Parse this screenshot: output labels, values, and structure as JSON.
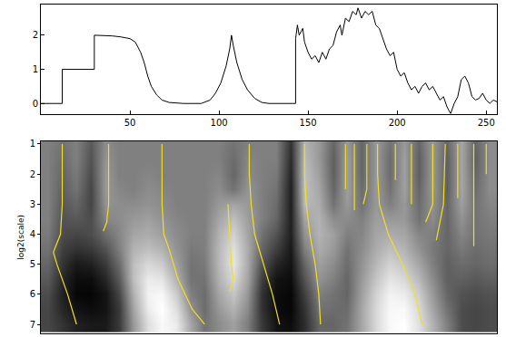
{
  "chart_data": [
    {
      "type": "line",
      "x": [
        0,
        12,
        12,
        30,
        30,
        35,
        40,
        45,
        50,
        53,
        56,
        58,
        60,
        62,
        65,
        68,
        72,
        80,
        90,
        95,
        98,
        101,
        104,
        106,
        107,
        108,
        110,
        113,
        116,
        120,
        124,
        128,
        143,
        143,
        144,
        145,
        147,
        148,
        150,
        152,
        154,
        156,
        158,
        160,
        162,
        164,
        166,
        168,
        169,
        171,
        173,
        175,
        177,
        178,
        180,
        182,
        184,
        186,
        188,
        190,
        192,
        194,
        196,
        198,
        200,
        202,
        204,
        206,
        208,
        210,
        212,
        214,
        216,
        218,
        220,
        222,
        224,
        226,
        228,
        230,
        232,
        234,
        236,
        238,
        240,
        242,
        244,
        246,
        248,
        250,
        252,
        254,
        256
      ],
      "values": [
        0,
        0,
        1,
        1,
        2,
        2,
        1.98,
        1.95,
        1.9,
        1.8,
        1.5,
        1.2,
        0.8,
        0.5,
        0.25,
        0.1,
        0.03,
        0,
        0,
        0.1,
        0.3,
        0.6,
        1.1,
        1.6,
        2.0,
        1.7,
        1.2,
        0.7,
        0.4,
        0.15,
        0.03,
        0,
        0,
        1.9,
        2.3,
        2.0,
        2.2,
        1.8,
        1.5,
        1.3,
        1.4,
        1.2,
        1.5,
        1.3,
        1.6,
        1.7,
        2.1,
        2.3,
        2.0,
        2.5,
        2.4,
        2.7,
        2.6,
        2.8,
        2.5,
        2.7,
        2.6,
        2.7,
        2.3,
        2.2,
        1.9,
        1.6,
        1.4,
        1.5,
        1.0,
        0.8,
        0.9,
        0.6,
        0.4,
        0.5,
        0.3,
        0.5,
        0.6,
        0.4,
        0.5,
        0.3,
        0.1,
        0.2,
        -0.1,
        -0.3,
        0.0,
        0.2,
        0.7,
        0.8,
        0.6,
        0.2,
        0.1,
        0.15,
        0.3,
        0.1,
        0.0,
        0.1,
        0.05
      ],
      "color": "#000000",
      "xlim": [
        0,
        256
      ],
      "xticks": [
        50,
        100,
        150,
        200,
        250
      ],
      "ylim": [
        -0.3,
        2.9
      ],
      "yticks": [
        0,
        1,
        2
      ]
    },
    {
      "type": "heatmap",
      "y_label": "log2(scale)",
      "x": [
        4,
        12,
        20,
        28,
        36,
        44,
        52,
        60,
        68,
        76,
        84,
        92,
        100,
        108,
        116,
        124,
        132,
        140,
        148,
        156,
        164,
        172,
        180,
        188,
        196,
        204,
        212,
        220,
        228,
        236,
        244,
        252
      ],
      "y": [
        1,
        1.5,
        2,
        2.5,
        3,
        3.5,
        4,
        4.5,
        5,
        5.5,
        6,
        6.5,
        7
      ],
      "z": [
        [
          0,
          -0.1,
          0,
          -0.3,
          0.1,
          0,
          0,
          0,
          0,
          0,
          0,
          0,
          0,
          -0.1,
          0,
          0,
          0,
          -0.6,
          0.4,
          0.2,
          -0.2,
          0.2,
          -0.2,
          0.2,
          -0.1,
          0.2,
          -0.2,
          0.2,
          -0.2,
          0.3,
          -0.2,
          0.1
        ],
        [
          0,
          -0.15,
          0,
          -0.35,
          0.15,
          0,
          0,
          0,
          0,
          0,
          0,
          0,
          0,
          -0.15,
          0.05,
          0,
          0,
          -0.65,
          0.45,
          0.2,
          -0.25,
          0.25,
          -0.2,
          0.2,
          -0.15,
          0.25,
          -0.25,
          0.2,
          -0.25,
          0.3,
          -0.25,
          0.1
        ],
        [
          0,
          -0.2,
          -0.05,
          -0.4,
          0.2,
          0,
          0,
          0.05,
          0,
          0,
          0,
          0,
          0.05,
          -0.2,
          0.1,
          0,
          -0.05,
          -0.7,
          0.5,
          0.25,
          -0.25,
          0.25,
          -0.2,
          0.2,
          -0.15,
          0.25,
          -0.25,
          0.2,
          -0.25,
          0.3,
          -0.2,
          0.1
        ],
        [
          0,
          -0.25,
          -0.1,
          -0.45,
          0.2,
          0.05,
          0,
          0.1,
          0.05,
          0,
          0,
          0,
          0.1,
          -0.1,
          0.15,
          0,
          -0.1,
          -0.75,
          0.5,
          0.3,
          -0.2,
          0.25,
          -0.15,
          0.2,
          -0.1,
          0.25,
          -0.2,
          0.2,
          -0.25,
          0.3,
          -0.15,
          0.1
        ],
        [
          0,
          -0.3,
          -0.2,
          -0.45,
          0.15,
          0.1,
          0.1,
          0.15,
          0.1,
          0,
          0,
          0,
          0.2,
          0.3,
          0.2,
          0,
          -0.15,
          -0.75,
          0.45,
          0.35,
          -0.1,
          0.2,
          -0.1,
          0.2,
          0,
          0.2,
          -0.15,
          0.15,
          -0.2,
          0.25,
          -0.1,
          0.05
        ],
        [
          0,
          -0.35,
          -0.3,
          -0.4,
          0.05,
          0.1,
          0.2,
          0.25,
          0.15,
          0.05,
          0,
          0,
          0.3,
          0.5,
          0.25,
          0,
          -0.2,
          -0.75,
          0.3,
          0.4,
          0.1,
          0.1,
          0,
          0.25,
          0.2,
          0.2,
          -0.1,
          0.1,
          -0.2,
          0.15,
          -0.1,
          0
        ],
        [
          -0.05,
          -0.4,
          -0.45,
          -0.4,
          -0.15,
          0.05,
          0.3,
          0.35,
          0.25,
          0.1,
          0,
          0,
          0.4,
          0.65,
          0.3,
          -0.1,
          -0.35,
          -0.75,
          0.15,
          0.4,
          0.25,
          0,
          0.05,
          0.3,
          0.35,
          0.3,
          0.05,
          0,
          -0.2,
          0.05,
          -0.1,
          -0.05
        ],
        [
          -0.1,
          -0.5,
          -0.6,
          -0.55,
          -0.35,
          0,
          0.4,
          0.5,
          0.4,
          0.15,
          -0.05,
          0,
          0.45,
          0.75,
          0.35,
          -0.2,
          -0.5,
          -0.8,
          0,
          0.35,
          0.2,
          -0.1,
          0.1,
          0.35,
          0.5,
          0.4,
          0.15,
          -0.05,
          -0.2,
          -0.05,
          -0.15,
          -0.1
        ],
        [
          -0.2,
          -0.6,
          -0.8,
          -0.75,
          -0.55,
          -0.15,
          0.5,
          0.7,
          0.6,
          0.25,
          -0.1,
          -0.05,
          0.45,
          0.8,
          0.35,
          -0.35,
          -0.7,
          -0.85,
          -0.2,
          0.25,
          0.1,
          -0.15,
          0.15,
          0.45,
          0.65,
          0.55,
          0.3,
          0,
          -0.25,
          -0.15,
          -0.2,
          -0.15
        ],
        [
          -0.3,
          -0.7,
          -0.9,
          -0.9,
          -0.7,
          -0.3,
          0.5,
          0.85,
          0.8,
          0.4,
          -0.1,
          -0.1,
          0.4,
          0.7,
          0.3,
          -0.5,
          -0.85,
          -0.9,
          -0.35,
          0.15,
          0,
          -0.2,
          0.2,
          0.55,
          0.8,
          0.7,
          0.45,
          0.1,
          -0.25,
          -0.25,
          -0.3,
          -0.25
        ],
        [
          -0.4,
          -0.75,
          -0.95,
          -0.95,
          -0.85,
          -0.45,
          0.4,
          0.9,
          0.95,
          0.6,
          0,
          -0.15,
          0.3,
          0.55,
          0.2,
          -0.6,
          -0.9,
          -0.95,
          -0.5,
          0,
          -0.1,
          -0.2,
          0.25,
          0.65,
          0.9,
          0.85,
          0.6,
          0.2,
          -0.2,
          -0.35,
          -0.4,
          -0.35
        ],
        [
          -0.45,
          -0.7,
          -0.85,
          -0.9,
          -0.85,
          -0.55,
          0.3,
          0.85,
          1.0,
          0.75,
          0.15,
          -0.15,
          0.2,
          0.4,
          0.1,
          -0.6,
          -0.9,
          -0.95,
          -0.6,
          -0.1,
          -0.15,
          -0.15,
          0.3,
          0.7,
          0.95,
          0.95,
          0.7,
          0.3,
          -0.1,
          -0.4,
          -0.45,
          -0.4
        ],
        [
          -0.45,
          -0.6,
          -0.75,
          -0.8,
          -0.8,
          -0.55,
          0.2,
          0.75,
          0.95,
          0.85,
          0.3,
          -0.1,
          0.1,
          0.25,
          0,
          -0.55,
          -0.85,
          -0.9,
          -0.65,
          -0.2,
          -0.2,
          -0.1,
          0.3,
          0.7,
          0.95,
          1.0,
          0.75,
          0.4,
          0,
          -0.4,
          -0.45,
          -0.4
        ]
      ],
      "zlim": [
        -1,
        1
      ],
      "colors": [
        "#000000",
        "#ffffff"
      ],
      "xlim": [
        0,
        256
      ],
      "ylim": [
        7.3,
        0.9
      ],
      "yticks": [
        1,
        2,
        3,
        4,
        5,
        6,
        7
      ],
      "tick_labels": "y",
      "series": [
        {
          "type": "line",
          "color": "#f0e020",
          "x": [
            12,
            12,
            12,
            11,
            7,
            9,
            15,
            20
          ],
          "values": [
            1,
            2,
            3,
            4,
            4.6,
            5,
            6,
            7
          ]
        },
        {
          "type": "line",
          "color": "#f0e020",
          "x": [
            38,
            38,
            38,
            37,
            35
          ],
          "values": [
            1,
            2,
            3,
            3.6,
            3.9
          ]
        },
        {
          "type": "line",
          "color": "#f0e020",
          "x": [
            68,
            68,
            68,
            69,
            72,
            77,
            85,
            92
          ],
          "values": [
            1,
            2,
            3,
            4,
            4.5,
            5.5,
            6.5,
            7
          ]
        },
        {
          "type": "line",
          "color": "#f0e020",
          "x": [
            105,
            106,
            107,
            108,
            106
          ],
          "values": [
            3,
            4,
            5,
            5.5,
            5.9
          ]
        },
        {
          "type": "line",
          "color": "#f0e020",
          "x": [
            117,
            117,
            118,
            120,
            125,
            130,
            134
          ],
          "values": [
            1,
            2,
            3,
            4,
            5,
            6,
            7
          ]
        },
        {
          "type": "line",
          "color": "#f0e020",
          "x": [
            148,
            148,
            149,
            151,
            154,
            156,
            157
          ],
          "values": [
            1,
            2,
            3,
            4,
            5,
            6,
            7
          ]
        },
        {
          "type": "line",
          "color": "#f0e020",
          "x": [
            171,
            171
          ],
          "values": [
            1,
            2.5
          ]
        },
        {
          "type": "line",
          "color": "#f0e020",
          "x": [
            176,
            176
          ],
          "values": [
            1,
            3.2
          ]
        },
        {
          "type": "line",
          "color": "#f0e020",
          "x": [
            183,
            183,
            181
          ],
          "values": [
            1,
            2.5,
            3
          ]
        },
        {
          "type": "line",
          "color": "#f0e020",
          "x": [
            189,
            189,
            190,
            195,
            203,
            210,
            214
          ],
          "values": [
            1,
            2,
            3,
            4,
            5,
            6,
            7
          ]
        },
        {
          "type": "line",
          "color": "#f0e020",
          "x": [
            199,
            199
          ],
          "values": [
            1,
            2.2
          ]
        },
        {
          "type": "line",
          "color": "#f0e020",
          "x": [
            208,
            208
          ],
          "values": [
            1,
            3
          ]
        },
        {
          "type": "line",
          "color": "#f0e020",
          "x": [
            220,
            220,
            216
          ],
          "values": [
            1,
            3,
            3.6
          ]
        },
        {
          "type": "line",
          "color": "#f0e020",
          "x": [
            227,
            226,
            222
          ],
          "values": [
            1,
            3,
            4.2
          ]
        },
        {
          "type": "line",
          "color": "#f0e020",
          "x": [
            234,
            234
          ],
          "values": [
            1,
            2.8
          ]
        },
        {
          "type": "line",
          "color": "#f0e020",
          "x": [
            243,
            243
          ],
          "values": [
            1,
            4.4
          ]
        },
        {
          "type": "line",
          "color": "#f0e020",
          "x": [
            250,
            250
          ],
          "values": [
            1,
            2
          ]
        }
      ]
    }
  ]
}
